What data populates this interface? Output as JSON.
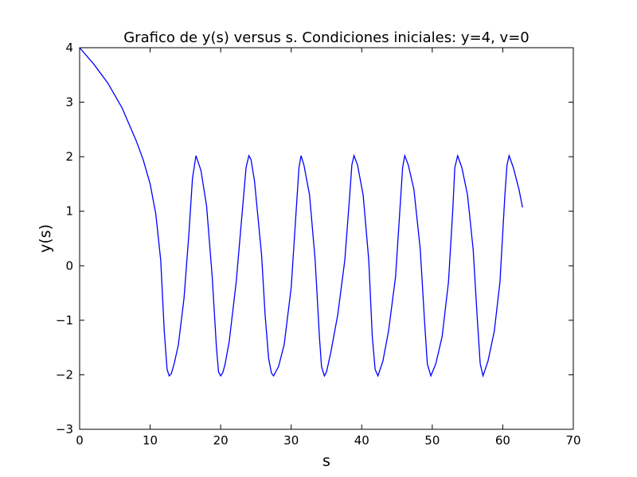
{
  "chart_data": {
    "type": "line",
    "title": "Grafico de y(s) versus s. Condiciones iniciales: y=4, v=0",
    "xlabel": "s",
    "ylabel": "y(s)",
    "xlim": [
      0,
      70
    ],
    "ylim": [
      -3,
      4
    ],
    "xticks": [
      0,
      10,
      20,
      30,
      40,
      50,
      60,
      70
    ],
    "yticks": [
      -3,
      -2,
      -1,
      0,
      1,
      2,
      3,
      4
    ],
    "xtick_labels": [
      "0",
      "10",
      "20",
      "30",
      "40",
      "50",
      "60",
      "70"
    ],
    "ytick_labels": [
      "−3",
      "−2",
      "−1",
      "0",
      "1",
      "2",
      "3",
      "4"
    ],
    "grid": false,
    "series_color": "#0000ff",
    "series": [
      {
        "x": [
          0,
          2,
          4,
          6,
          8,
          9,
          10,
          10.8,
          11.5,
          12,
          12.4,
          12.7,
          13.0,
          13.4,
          14,
          14.8,
          15.5,
          16.0,
          16.5,
          17.2,
          18.0,
          18.8,
          19.4,
          19.7,
          20.0,
          20.3,
          20.6,
          21.2,
          22.2,
          23.0,
          23.6,
          24.0,
          24.3,
          24.8,
          25.8,
          26.3,
          26.8,
          27.2,
          27.5,
          28.2,
          29.0,
          30.0,
          30.8,
          31.1,
          31.4,
          31.8,
          32.6,
          33.4,
          34.0,
          34.3,
          34.7,
          35.0,
          35.6,
          36.6,
          37.6,
          38.3,
          38.6,
          38.9,
          39.4,
          40.2,
          41.0,
          41.5,
          41.9,
          42.3,
          43.0,
          43.8,
          44.8,
          45.5,
          45.8,
          46.1,
          46.6,
          47.4,
          48.3,
          48.9,
          49.3,
          49.8,
          50.5,
          51.4,
          52.3,
          52.9,
          53.2,
          53.6,
          54.2,
          55.0,
          55.8,
          56.4,
          56.8,
          57.2,
          57.9,
          58.8,
          59.6,
          60.3,
          60.6,
          60.9,
          61.5,
          62.3,
          62.8
        ],
        "y": [
          4.0,
          3.7,
          3.35,
          2.9,
          2.3,
          1.95,
          1.5,
          0.95,
          0.1,
          -1.2,
          -1.9,
          -2.02,
          -1.98,
          -1.8,
          -1.45,
          -0.6,
          0.6,
          1.6,
          2.02,
          1.75,
          1.1,
          -0.2,
          -1.5,
          -1.95,
          -2.02,
          -1.96,
          -1.82,
          -1.4,
          -0.3,
          0.9,
          1.8,
          2.02,
          1.95,
          1.55,
          0.2,
          -0.9,
          -1.7,
          -1.97,
          -2.02,
          -1.85,
          -1.45,
          -0.4,
          1.2,
          1.8,
          2.02,
          1.85,
          1.3,
          0.1,
          -1.3,
          -1.85,
          -2.02,
          -1.95,
          -1.6,
          -0.9,
          0.1,
          1.3,
          1.85,
          2.02,
          1.85,
          1.3,
          0.1,
          -1.3,
          -1.9,
          -2.02,
          -1.75,
          -1.2,
          -0.2,
          1.2,
          1.8,
          2.02,
          1.85,
          1.4,
          0.3,
          -1.0,
          -1.8,
          -2.02,
          -1.8,
          -1.3,
          -0.3,
          1.0,
          1.8,
          2.02,
          1.8,
          1.3,
          0.3,
          -1.0,
          -1.8,
          -2.02,
          -1.75,
          -1.2,
          -0.3,
          1.3,
          1.85,
          2.02,
          1.8,
          1.4,
          1.07
        ]
      }
    ]
  }
}
